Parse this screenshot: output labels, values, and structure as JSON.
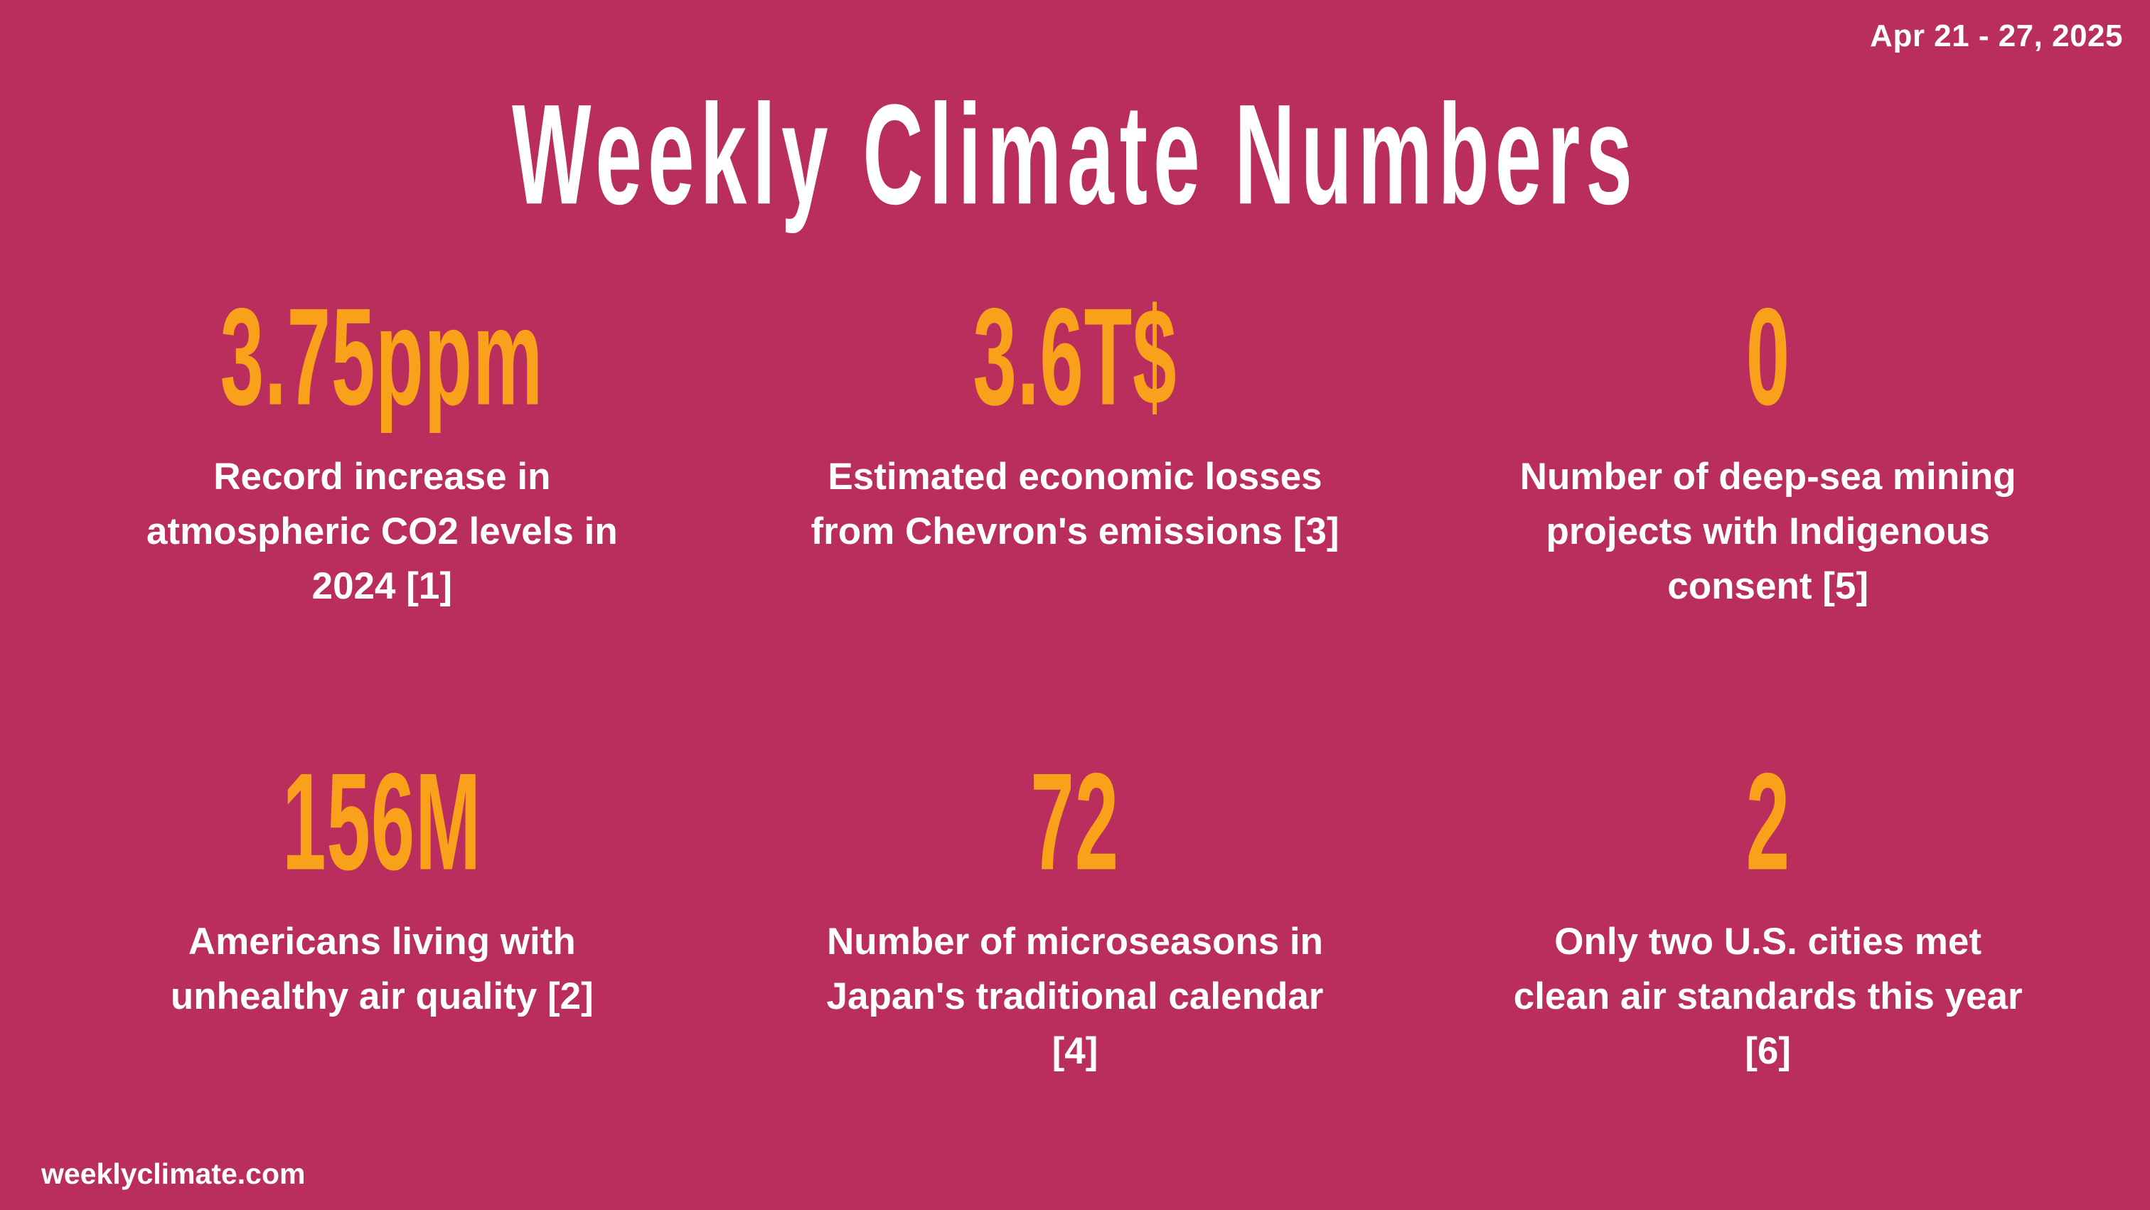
{
  "header": {
    "date_range": "Apr 21 - 27, 2025",
    "title": "Weekly Climate Numbers"
  },
  "colors": {
    "background": "#B92E5C",
    "accent_orange": "#F9A11B",
    "text_white": "#FFFFFF"
  },
  "stats": [
    {
      "value": "3.75ppm",
      "description": "Record increase in\natmospheric CO2 levels in\n2024 [1]"
    },
    {
      "value": "3.6T$",
      "description": "Estimated economic losses\nfrom Chevron's emissions [3]"
    },
    {
      "value": "0",
      "description": "Number of deep-sea mining\nprojects with Indigenous\nconsent [5]"
    },
    {
      "value": "156M",
      "description": "Americans living with\nunhealthy air quality [2]"
    },
    {
      "value": "72",
      "description": "Number of microseasons in\nJapan's traditional calendar\n[4]"
    },
    {
      "value": "2",
      "description": "Only two U.S. cities met\nclean air standards this year\n[6]"
    }
  ],
  "footer": {
    "website": "weeklyclimate.com"
  }
}
